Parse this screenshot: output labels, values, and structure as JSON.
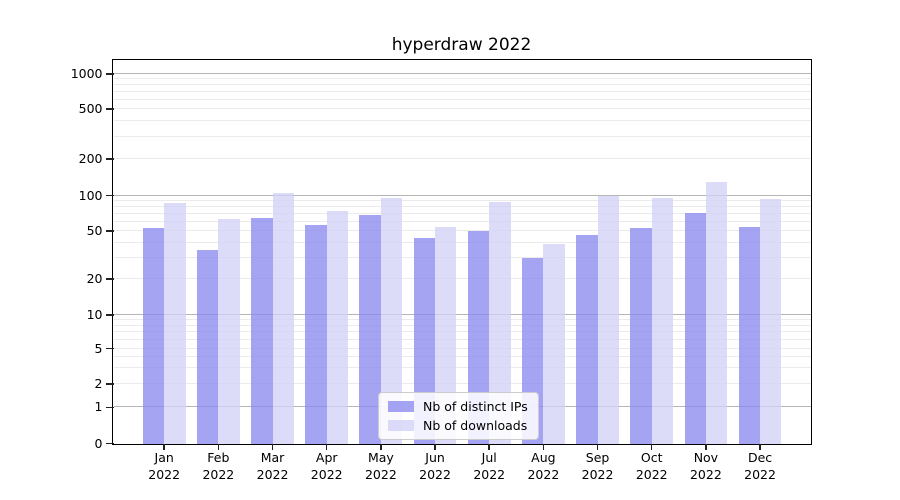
{
  "chart_data": {
    "type": "bar",
    "title": "hyperdraw 2022",
    "categories": [
      "Jan",
      "Feb",
      "Mar",
      "Apr",
      "May",
      "Jun",
      "Jul",
      "Aug",
      "Sep",
      "Oct",
      "Nov",
      "Dec"
    ],
    "x_tick_second_line": "2022",
    "series": [
      {
        "name": "Nb of distinct IPs",
        "color": "rgba(138,137,240,0.77)",
        "values": [
          53,
          35,
          65,
          56,
          69,
          44,
          50,
          30,
          46,
          53,
          71,
          54
        ]
      },
      {
        "name": "Nb of downloads",
        "color": "rgba(209,209,247,0.77)",
        "values": [
          86,
          63,
          106,
          74,
          96,
          54,
          88,
          39,
          100,
          96,
          130,
          93
        ]
      }
    ],
    "y_ticks": [
      0,
      1,
      2,
      5,
      10,
      20,
      50,
      100,
      200,
      500,
      1000
    ],
    "y_scale": "symlog",
    "ylim": [
      0,
      1280
    ],
    "grid": {
      "on": true,
      "major_color": "#b5b5b5",
      "minor_color": "#ebebeb"
    },
    "legend": {
      "position": "lower center",
      "entries": [
        "Nb of distinct IPs",
        "Nb of downloads"
      ]
    },
    "colors": {
      "background": "#ffffff",
      "frame": "#000000",
      "text": "#000000"
    }
  }
}
